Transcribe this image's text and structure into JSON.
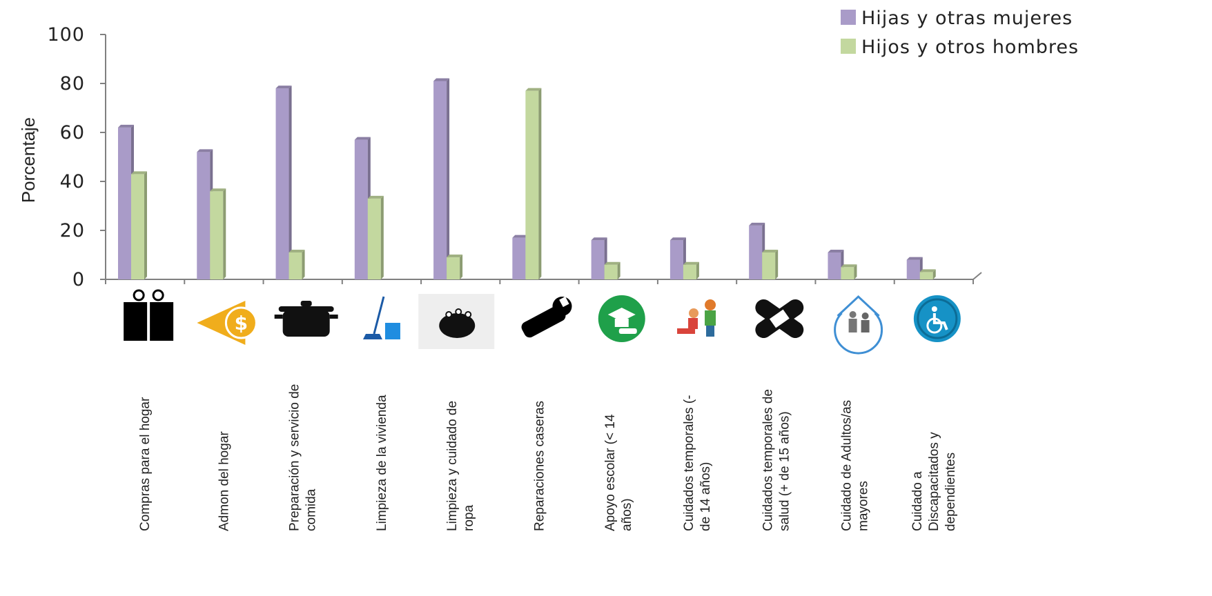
{
  "chart_data": {
    "type": "bar",
    "title": "",
    "xlabel": "",
    "ylabel": "Porcentaje",
    "ylim": [
      0,
      100
    ],
    "yticks": [
      "0",
      "20",
      "40",
      "60",
      "80",
      "100"
    ],
    "grid": false,
    "legend_position": "top-right",
    "categories": [
      [
        "Compras para el hogar"
      ],
      [
        "Admon del hogar"
      ],
      [
        "Preparación y servicio de",
        "comida"
      ],
      [
        "Limpieza de la vivienda"
      ],
      [
        "Limpieza y cuidado de",
        "ropa"
      ],
      [
        "Reparaciones caseras"
      ],
      [
        "Apoyo escolar (< 14",
        "años)"
      ],
      [
        "Cuidados temporales (-",
        "de 14 años)"
      ],
      [
        "Cuidados temporales de",
        "salud (+ de 15 años)"
      ],
      [
        "Cuidado de Adultos/as",
        "mayores"
      ],
      [
        "Cuidado a",
        "Discapacitados y",
        "dependientes"
      ]
    ],
    "category_icons": [
      "shopping-bags-icon",
      "money-coin-icon",
      "cooking-pot-icon",
      "broom-bucket-icon",
      "laundry-basin-icon",
      "wrench-tool-icon",
      "graduation-cap-icon",
      "children-playing-icon",
      "bandage-icon",
      "elderly-couple-house-icon",
      "wheelchair-icon"
    ],
    "series": [
      {
        "name": "Hijas y otras mujeres",
        "color": "#a99bc8",
        "values": [
          62,
          52,
          78,
          57,
          81,
          17,
          16,
          16,
          22,
          11,
          8
        ]
      },
      {
        "name": "Hijos y otros hombres",
        "color": "#c3d89f",
        "values": [
          43,
          36,
          11,
          33,
          9,
          77,
          6,
          6,
          11,
          5,
          3
        ]
      }
    ]
  }
}
